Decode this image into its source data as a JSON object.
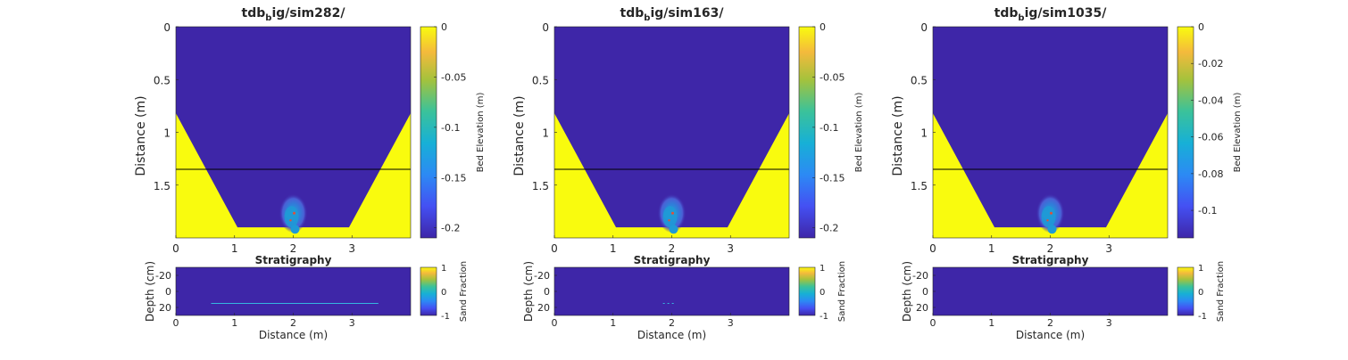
{
  "colors": {
    "bed": "#3e26a8",
    "bank": "#f9fb0e",
    "plume_outer": "#4a6cd0",
    "plume_core": "#1f9ad6",
    "particle": "#e0503a",
    "waterline": "#000000",
    "stratline": "#35b6e0"
  },
  "chart_data": [
    {
      "type": "heatmap",
      "title_main": "tdb",
      "title_sub": "b",
      "title_rest": "ig/sim282/",
      "ylabel": "Distance (m)",
      "xlim": [
        0,
        4
      ],
      "ylim": [
        0,
        2
      ],
      "x_ticks": [
        "0",
        "1",
        "2",
        "3"
      ],
      "x_tick_values": [
        0,
        1,
        2,
        3
      ],
      "y_ticks": [
        "0",
        "0.5",
        "1",
        "1.5"
      ],
      "y_tick_values": [
        0,
        0.5,
        1,
        1.5
      ],
      "waterline_y": 1.35,
      "channel": {
        "top_y": 0.82,
        "bottom_y": 1.9,
        "top_left_x": 0.0,
        "bottom_left_x": 1.05,
        "bottom_right_x": 2.95,
        "top_right_x": 4.0
      },
      "plume": {
        "x": 2.0,
        "y": 1.8
      },
      "colorbar": {
        "label": "Bed Elevation (m)",
        "ticks": [
          "0",
          "-0.05",
          "-0.1",
          "-0.15",
          "-0.2"
        ],
        "tick_values": [
          0,
          -0.05,
          -0.1,
          -0.15,
          -0.2
        ],
        "range": [
          -0.21,
          0
        ]
      },
      "strat": {
        "title": "Stratigraphy",
        "xlabel": "Distance (m)",
        "ylabel": "Depth (cm)",
        "xlim": [
          0,
          4
        ],
        "ylim": [
          -30,
          30
        ],
        "x_ticks": [
          "0",
          "1",
          "2",
          "3"
        ],
        "x_tick_values": [
          0,
          1,
          2,
          3
        ],
        "y_ticks": [
          "-20",
          "0",
          "20"
        ],
        "y_tick_values": [
          -20,
          0,
          20
        ],
        "layer": {
          "depth": 15,
          "x_start": 0.6,
          "x_end": 3.45,
          "style": "solid"
        },
        "colorbar": {
          "label": "Sand Fraction",
          "ticks": [
            "1",
            "0",
            "-1"
          ],
          "tick_values": [
            1,
            0,
            -1
          ],
          "range": [
            -1,
            1
          ]
        }
      }
    },
    {
      "type": "heatmap",
      "title_main": "tdb",
      "title_sub": "b",
      "title_rest": "ig/sim163/",
      "ylabel": "Distance (m)",
      "xlim": [
        0,
        4
      ],
      "ylim": [
        0,
        2
      ],
      "x_ticks": [
        "0",
        "1",
        "2",
        "3"
      ],
      "x_tick_values": [
        0,
        1,
        2,
        3
      ],
      "y_ticks": [
        "0",
        "0.5",
        "1",
        "1.5"
      ],
      "y_tick_values": [
        0,
        0.5,
        1,
        1.5
      ],
      "waterline_y": 1.35,
      "channel": {
        "top_y": 0.82,
        "bottom_y": 1.9,
        "top_left_x": 0.0,
        "bottom_left_x": 1.05,
        "bottom_right_x": 2.95,
        "top_right_x": 4.0
      },
      "plume": {
        "x": 2.0,
        "y": 1.8
      },
      "colorbar": {
        "label": "Bed Elevation (m)",
        "ticks": [
          "0",
          "-0.05",
          "-0.1",
          "-0.15",
          "-0.2"
        ],
        "tick_values": [
          0,
          -0.05,
          -0.1,
          -0.15,
          -0.2
        ],
        "range": [
          -0.21,
          0
        ]
      },
      "strat": {
        "title": "Stratigraphy",
        "xlabel": "Distance (m)",
        "ylabel": "Depth (cm)",
        "xlim": [
          0,
          4
        ],
        "ylim": [
          -30,
          30
        ],
        "x_ticks": [
          "0",
          "1",
          "2",
          "3"
        ],
        "x_tick_values": [
          0,
          1,
          2,
          3
        ],
        "y_ticks": [
          "-20",
          "0",
          "20"
        ],
        "y_tick_values": [
          -20,
          0,
          20
        ],
        "layer": {
          "depth": 15,
          "x_start": 1.85,
          "x_end": 2.05,
          "style": "dashed"
        },
        "colorbar": {
          "label": "Sand Fraction",
          "ticks": [
            "1",
            "0",
            "-1"
          ],
          "tick_values": [
            1,
            0,
            -1
          ],
          "range": [
            -1,
            1
          ]
        }
      }
    },
    {
      "type": "heatmap",
      "title_main": "tdb",
      "title_sub": "b",
      "title_rest": "ig/sim1035/",
      "ylabel": "Distance (m)",
      "xlim": [
        0,
        4
      ],
      "ylim": [
        0,
        2
      ],
      "x_ticks": [
        "0",
        "1",
        "2",
        "3"
      ],
      "x_tick_values": [
        0,
        1,
        2,
        3
      ],
      "y_ticks": [
        "0",
        "0.5",
        "1",
        "1.5"
      ],
      "y_tick_values": [
        0,
        0.5,
        1,
        1.5
      ],
      "waterline_y": 1.35,
      "channel": {
        "top_y": 0.82,
        "bottom_y": 1.9,
        "top_left_x": 0.0,
        "bottom_left_x": 1.05,
        "bottom_right_x": 2.95,
        "top_right_x": 4.0
      },
      "plume": {
        "x": 2.0,
        "y": 1.8
      },
      "colorbar": {
        "label": "Bed Elevation (m)",
        "ticks": [
          "0",
          "-0.02",
          "-0.04",
          "-0.06",
          "-0.08",
          "-0.1"
        ],
        "tick_values": [
          0,
          -0.02,
          -0.04,
          -0.06,
          -0.08,
          -0.1
        ],
        "range": [
          -0.115,
          0
        ]
      },
      "strat": {
        "title": "Stratigraphy",
        "xlabel": "Distance (m)",
        "ylabel": "Depth (cm)",
        "xlim": [
          0,
          4
        ],
        "ylim": [
          -30,
          30
        ],
        "x_ticks": [
          "0",
          "1",
          "2",
          "3"
        ],
        "x_tick_values": [
          0,
          1,
          2,
          3
        ],
        "y_ticks": [
          "-20",
          "0",
          "20"
        ],
        "y_tick_values": [
          -20,
          0,
          20
        ],
        "layer": null,
        "colorbar": {
          "label": "Sand Fraction",
          "ticks": [
            "1",
            "0",
            "-1"
          ],
          "tick_values": [
            1,
            0,
            -1
          ],
          "range": [
            -1,
            1
          ]
        }
      }
    }
  ]
}
